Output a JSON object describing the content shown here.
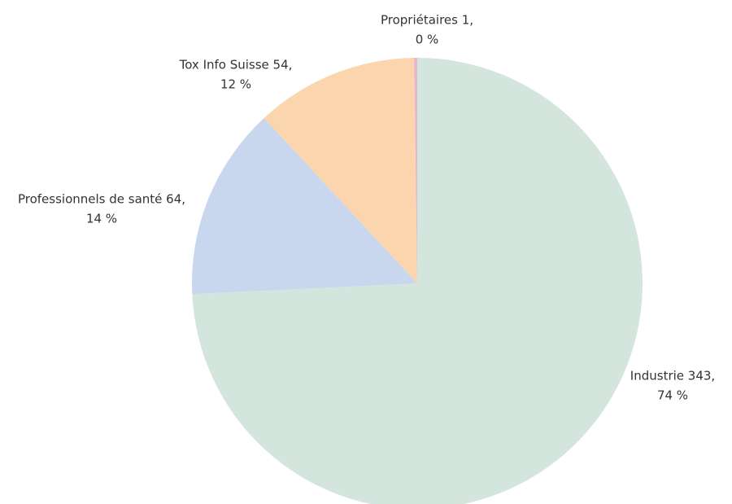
{
  "chart_data": {
    "type": "pie",
    "values": [
      343,
      64,
      54,
      1
    ],
    "value_labels": [
      "Industrie 343,",
      "Professionnels de santé 64,",
      "Tox Info Suisse 54,",
      "Propriétaires 1,"
    ],
    "percents": [
      74,
      14,
      12,
      0
    ],
    "percent_labels": [
      "74 %",
      "14 %",
      "12 %",
      "0 %"
    ],
    "colors": [
      "#d3e5dc",
      "#c8d6ee",
      "#fbd5ae",
      "#e6b3d1"
    ]
  }
}
